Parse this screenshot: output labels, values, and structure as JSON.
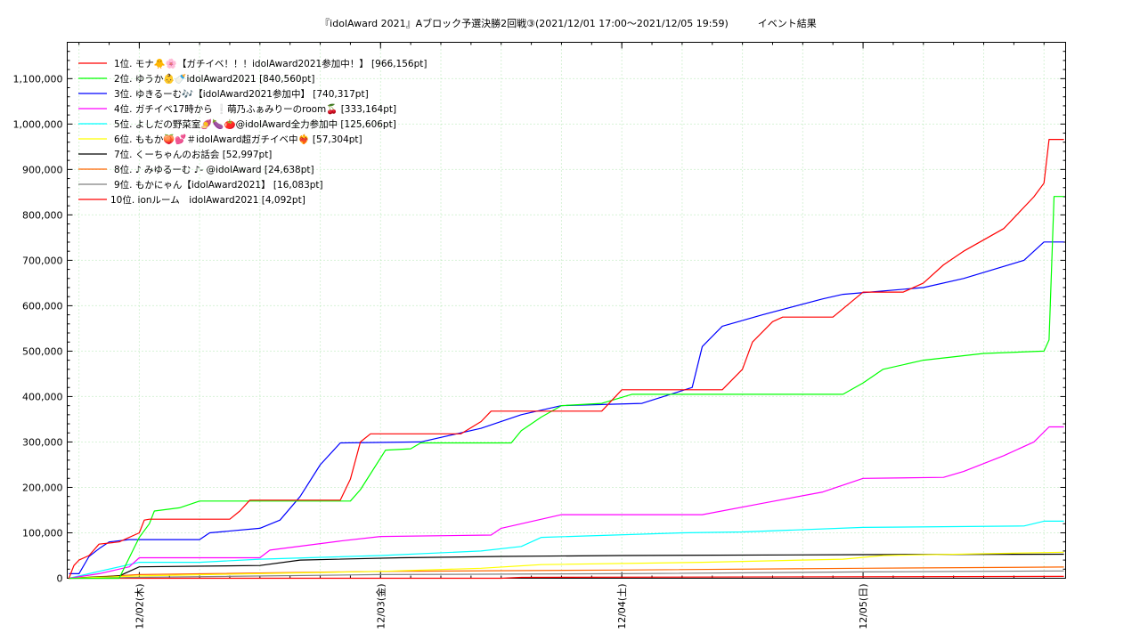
{
  "chart_data": {
    "type": "line",
    "title": "『idolAward 2021』Aブロック予選決勝2回戦③(2021/12/01 17:00～2021/12/05 19:59)　　　イベント結果",
    "xlabel": "",
    "ylabel": "",
    "x_range": [
      "2021-12-01 17:00",
      "2021-12-05 19:59"
    ],
    "ylim": [
      0,
      1180000
    ],
    "x_ticks": [
      "12/02(木)",
      "12/03(金)",
      "12/04(土)",
      "12/05(日)"
    ],
    "x_tick_positions": [
      "2021-12-02 00:00",
      "2021-12-03 00:00",
      "2021-12-04 00:00",
      "2021-12-05 00:00"
    ],
    "y_ticks": [
      "0",
      "100,000",
      "200,000",
      "300,000",
      "400,000",
      "500,000",
      "600,000",
      "700,000",
      "800,000",
      "900,000",
      "1,000,000",
      "1,100,000"
    ],
    "y_tick_values": [
      0,
      100000,
      200000,
      300000,
      400000,
      500000,
      600000,
      700000,
      800000,
      900000,
      1000000,
      1100000
    ],
    "grid": true,
    "legend_position": "top-left",
    "series": [
      {
        "name": "1位. モナ🐥🌸【ガチイベ！！！idolAward2021参加中！】 [966,156pt]",
        "color": "#ff0000",
        "points": [
          [
            "2021-12-01 17:00",
            0
          ],
          [
            "2021-12-01 17:30",
            28000
          ],
          [
            "2021-12-01 18:00",
            40000
          ],
          [
            "2021-12-01 19:00",
            50000
          ],
          [
            "2021-12-01 20:00",
            75000
          ],
          [
            "2021-12-01 22:00",
            80000
          ],
          [
            "2021-12-02 00:00",
            100000
          ],
          [
            "2021-12-02 00:30",
            128000
          ],
          [
            "2021-12-02 01:00",
            130000
          ],
          [
            "2021-12-02 09:00",
            130000
          ],
          [
            "2021-12-02 10:00",
            148000
          ],
          [
            "2021-12-02 11:00",
            172000
          ],
          [
            "2021-12-02 20:00",
            172000
          ],
          [
            "2021-12-02 21:00",
            218000
          ],
          [
            "2021-12-02 22:00",
            300000
          ],
          [
            "2021-12-02 23:00",
            318000
          ],
          [
            "2021-12-03 08:00",
            318000
          ],
          [
            "2021-12-03 10:00",
            345000
          ],
          [
            "2021-12-03 11:00",
            368000
          ],
          [
            "2021-12-03 22:00",
            368000
          ],
          [
            "2021-12-04 00:00",
            415000
          ],
          [
            "2021-12-04 10:00",
            415000
          ],
          [
            "2021-12-04 12:00",
            460000
          ],
          [
            "2021-12-04 13:00",
            520000
          ],
          [
            "2021-12-04 15:00",
            565000
          ],
          [
            "2021-12-04 16:00",
            575000
          ],
          [
            "2021-12-04 21:00",
            575000
          ],
          [
            "2021-12-05 00:00",
            630000
          ],
          [
            "2021-12-05 04:00",
            630000
          ],
          [
            "2021-12-05 06:00",
            650000
          ],
          [
            "2021-12-05 08:00",
            690000
          ],
          [
            "2021-12-05 10:00",
            720000
          ],
          [
            "2021-12-05 14:00",
            770000
          ],
          [
            "2021-12-05 17:00",
            840000
          ],
          [
            "2021-12-05 18:00",
            870000
          ],
          [
            "2021-12-05 18:30",
            966156
          ],
          [
            "2021-12-05 19:59",
            966156
          ]
        ]
      },
      {
        "name": "2位. ゆうか👶🍼idolAward2021 [840,560pt]",
        "color": "#00ff00",
        "points": [
          [
            "2021-12-01 17:00",
            0
          ],
          [
            "2021-12-01 22:00",
            0
          ],
          [
            "2021-12-02 00:00",
            90000
          ],
          [
            "2021-12-02 01:00",
            120000
          ],
          [
            "2021-12-02 01:30",
            148000
          ],
          [
            "2021-12-02 04:00",
            155000
          ],
          [
            "2021-12-02 06:00",
            170000
          ],
          [
            "2021-12-02 21:00",
            170000
          ],
          [
            "2021-12-02 22:00",
            195000
          ],
          [
            "2021-12-03 00:30",
            282000
          ],
          [
            "2021-12-03 03:00",
            285000
          ],
          [
            "2021-12-03 04:00",
            298000
          ],
          [
            "2021-12-03 13:00",
            298000
          ],
          [
            "2021-12-03 14:00",
            325000
          ],
          [
            "2021-12-03 16:00",
            355000
          ],
          [
            "2021-12-03 18:00",
            380000
          ],
          [
            "2021-12-03 22:00",
            385000
          ],
          [
            "2021-12-04 01:00",
            405000
          ],
          [
            "2021-12-04 22:00",
            405000
          ],
          [
            "2021-12-05 00:00",
            430000
          ],
          [
            "2021-12-05 02:00",
            460000
          ],
          [
            "2021-12-05 06:00",
            480000
          ],
          [
            "2021-12-05 12:00",
            495000
          ],
          [
            "2021-12-05 18:00",
            500000
          ],
          [
            "2021-12-05 18:30",
            525000
          ],
          [
            "2021-12-05 19:00",
            840560
          ],
          [
            "2021-12-05 19:59",
            840560
          ]
        ]
      },
      {
        "name": "3位. ゆきるーむ🎶【idolAward2021参加中】 [740,317pt]",
        "color": "#0000ff",
        "points": [
          [
            "2021-12-01 17:00",
            10000
          ],
          [
            "2021-12-01 18:00",
            10000
          ],
          [
            "2021-12-01 19:00",
            48000
          ],
          [
            "2021-12-01 20:00",
            65000
          ],
          [
            "2021-12-01 21:00",
            80000
          ],
          [
            "2021-12-01 23:00",
            85000
          ],
          [
            "2021-12-02 06:00",
            85000
          ],
          [
            "2021-12-02 07:00",
            100000
          ],
          [
            "2021-12-02 12:00",
            110000
          ],
          [
            "2021-12-02 14:00",
            128000
          ],
          [
            "2021-12-02 16:00",
            180000
          ],
          [
            "2021-12-02 18:00",
            250000
          ],
          [
            "2021-12-02 20:00",
            298000
          ],
          [
            "2021-12-03 04:00",
            300000
          ],
          [
            "2021-12-03 10:00",
            330000
          ],
          [
            "2021-12-03 14:00",
            360000
          ],
          [
            "2021-12-03 18:00",
            380000
          ],
          [
            "2021-12-04 02:00",
            385000
          ],
          [
            "2021-12-04 07:00",
            420000
          ],
          [
            "2021-12-04 08:00",
            510000
          ],
          [
            "2021-12-04 10:00",
            555000
          ],
          [
            "2021-12-04 14:00",
            580000
          ],
          [
            "2021-12-04 20:00",
            615000
          ],
          [
            "2021-12-04 22:00",
            625000
          ],
          [
            "2021-12-05 06:00",
            640000
          ],
          [
            "2021-12-05 10:00",
            660000
          ],
          [
            "2021-12-05 16:00",
            700000
          ],
          [
            "2021-12-05 18:00",
            740317
          ],
          [
            "2021-12-05 19:59",
            740317
          ]
        ]
      },
      {
        "name": "4位. ガチイベ17時から ❕萌乃ふぁみりーのroom🍒 [333,164pt]",
        "color": "#ff00ff",
        "points": [
          [
            "2021-12-01 17:00",
            0
          ],
          [
            "2021-12-01 20:00",
            10000
          ],
          [
            "2021-12-01 23:00",
            25000
          ],
          [
            "2021-12-02 00:00",
            45000
          ],
          [
            "2021-12-02 12:00",
            45000
          ],
          [
            "2021-12-02 13:00",
            62000
          ],
          [
            "2021-12-02 20:00",
            82000
          ],
          [
            "2021-12-03 00:00",
            92000
          ],
          [
            "2021-12-03 11:00",
            95000
          ],
          [
            "2021-12-03 12:00",
            110000
          ],
          [
            "2021-12-03 16:00",
            130000
          ],
          [
            "2021-12-03 18:00",
            140000
          ],
          [
            "2021-12-04 08:00",
            140000
          ],
          [
            "2021-12-04 14:00",
            165000
          ],
          [
            "2021-12-04 20:00",
            190000
          ],
          [
            "2021-12-05 00:00",
            220000
          ],
          [
            "2021-12-05 08:00",
            222000
          ],
          [
            "2021-12-05 10:00",
            235000
          ],
          [
            "2021-12-05 14:00",
            270000
          ],
          [
            "2021-12-05 17:00",
            300000
          ],
          [
            "2021-12-05 18:30",
            333164
          ],
          [
            "2021-12-05 19:59",
            333164
          ]
        ]
      },
      {
        "name": "5位. よしだの野菜室🍠🍆🍅@idolAward全力参加中 [125,606pt]",
        "color": "#00ffff",
        "points": [
          [
            "2021-12-01 17:00",
            0
          ],
          [
            "2021-12-02 00:00",
            35000
          ],
          [
            "2021-12-02 06:00",
            35000
          ],
          [
            "2021-12-02 12:00",
            42000
          ],
          [
            "2021-12-03 00:00",
            50000
          ],
          [
            "2021-12-03 10:00",
            60000
          ],
          [
            "2021-12-03 14:00",
            70000
          ],
          [
            "2021-12-03 16:00",
            90000
          ],
          [
            "2021-12-04 06:00",
            100000
          ],
          [
            "2021-12-04 12:00",
            102000
          ],
          [
            "2021-12-05 00:00",
            112000
          ],
          [
            "2021-12-05 16:00",
            115000
          ],
          [
            "2021-12-05 18:00",
            125606
          ],
          [
            "2021-12-05 19:59",
            125606
          ]
        ]
      },
      {
        "name": "6位. ももか🍑💕＃idolAward超ガチイベ中❤️‍🔥 [57,304pt]",
        "color": "#ffff00",
        "points": [
          [
            "2021-12-01 17:00",
            0
          ],
          [
            "2021-12-02 00:00",
            5000
          ],
          [
            "2021-12-03 00:00",
            15000
          ],
          [
            "2021-12-03 10:00",
            22000
          ],
          [
            "2021-12-03 16:00",
            30000
          ],
          [
            "2021-12-04 08:00",
            35000
          ],
          [
            "2021-12-04 22:00",
            42000
          ],
          [
            "2021-12-05 02:00",
            50000
          ],
          [
            "2021-12-05 19:59",
            57304
          ]
        ]
      },
      {
        "name": "7位. くーちゃんのお話会 [52,997pt]",
        "color": "#000000",
        "points": [
          [
            "2021-12-01 17:00",
            0
          ],
          [
            "2021-12-01 22:00",
            5000
          ],
          [
            "2021-12-02 00:00",
            25000
          ],
          [
            "2021-12-02 12:00",
            28000
          ],
          [
            "2021-12-02 16:00",
            40000
          ],
          [
            "2021-12-03 02:00",
            45000
          ],
          [
            "2021-12-03 12:00",
            48000
          ],
          [
            "2021-12-04 00:00",
            50000
          ],
          [
            "2021-12-05 00:00",
            52000
          ],
          [
            "2021-12-05 19:59",
            52997
          ]
        ]
      },
      {
        "name": "8位. ♪ みゆるーむ ♪- @idolAward [24,638pt]",
        "color": "#ff6600",
        "points": [
          [
            "2021-12-01 17:00",
            0
          ],
          [
            "2021-12-02 00:00",
            8000
          ],
          [
            "2021-12-03 00:00",
            15000
          ],
          [
            "2021-12-04 00:00",
            18000
          ],
          [
            "2021-12-05 00:00",
            22000
          ],
          [
            "2021-12-05 19:59",
            24638
          ]
        ]
      },
      {
        "name": "9位. もかにゃん【idolAward2021】 [16,083pt]",
        "color": "#808080",
        "points": [
          [
            "2021-12-01 17:00",
            0
          ],
          [
            "2021-12-02 00:00",
            2000
          ],
          [
            "2021-12-03 00:00",
            8000
          ],
          [
            "2021-12-04 00:00",
            10000
          ],
          [
            "2021-12-05 00:00",
            14000
          ],
          [
            "2021-12-05 19:59",
            16083
          ]
        ]
      },
      {
        "name": "10位. ionルーム　idolAward2021 [4,092pt]",
        "color": "#ff0000",
        "points": [
          [
            "2021-12-01 17:00",
            0
          ],
          [
            "2021-12-03 12:00",
            0
          ],
          [
            "2021-12-03 14:00",
            2000
          ],
          [
            "2021-12-05 19:59",
            4092
          ]
        ]
      }
    ]
  }
}
